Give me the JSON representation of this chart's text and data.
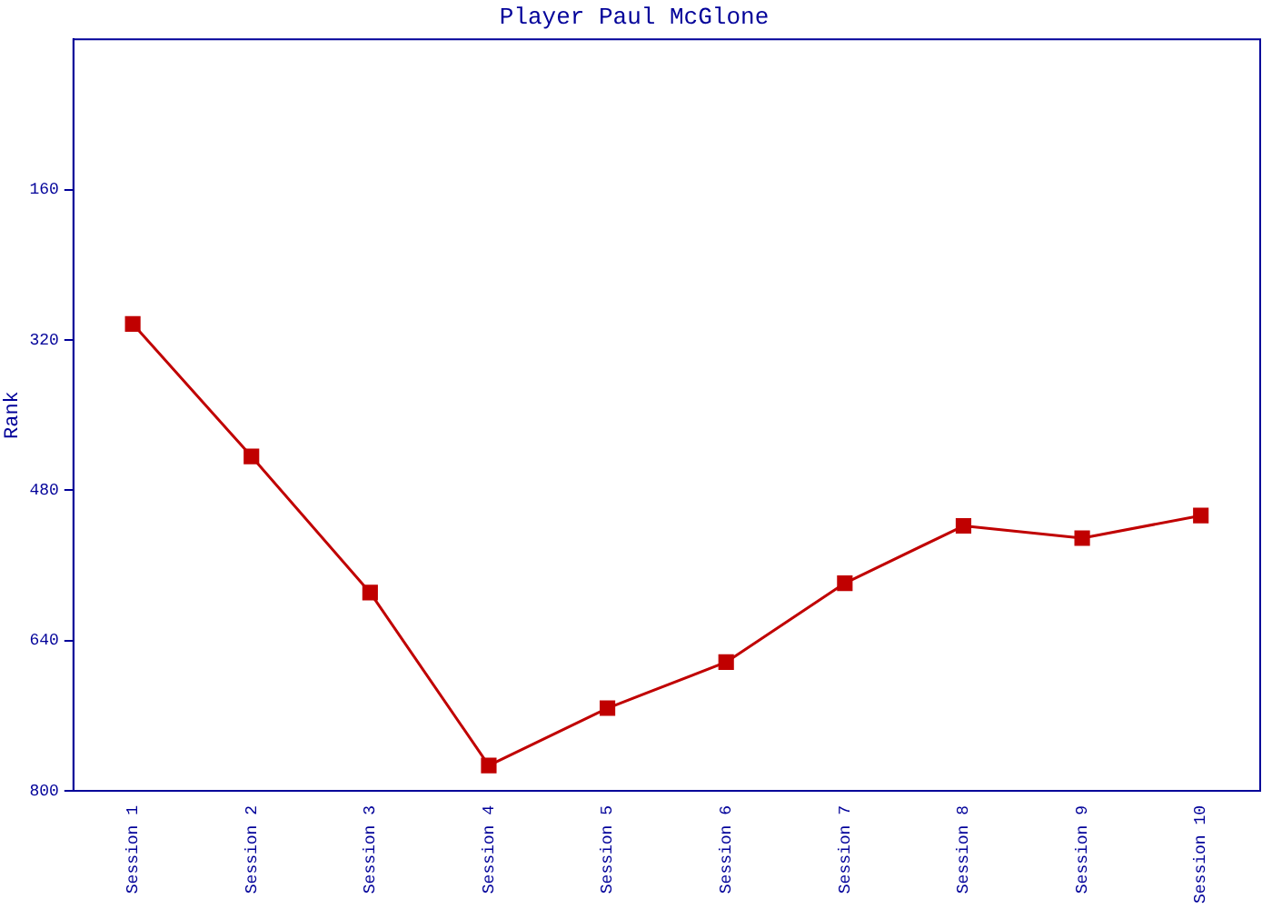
{
  "chart_data": {
    "type": "line",
    "title": "Player Paul McGlone",
    "ylabel": "Rank",
    "categories": [
      "Session 1",
      "Session 2",
      "Session 3",
      "Session 4",
      "Session 5",
      "Session 6",
      "Session 7",
      "Session 8",
      "Session 9",
      "Session 10"
    ],
    "series": [
      {
        "color": "#c00000",
        "values": [
          303,
          444,
          589,
          773,
          712,
          663,
          579,
          518,
          531,
          507
        ]
      }
    ],
    "ylim": [
      800,
      0
    ],
    "yticks": [
      160,
      320,
      480,
      640,
      800
    ],
    "grid": false,
    "legend": false,
    "marker": "square",
    "line_style": "solid"
  }
}
